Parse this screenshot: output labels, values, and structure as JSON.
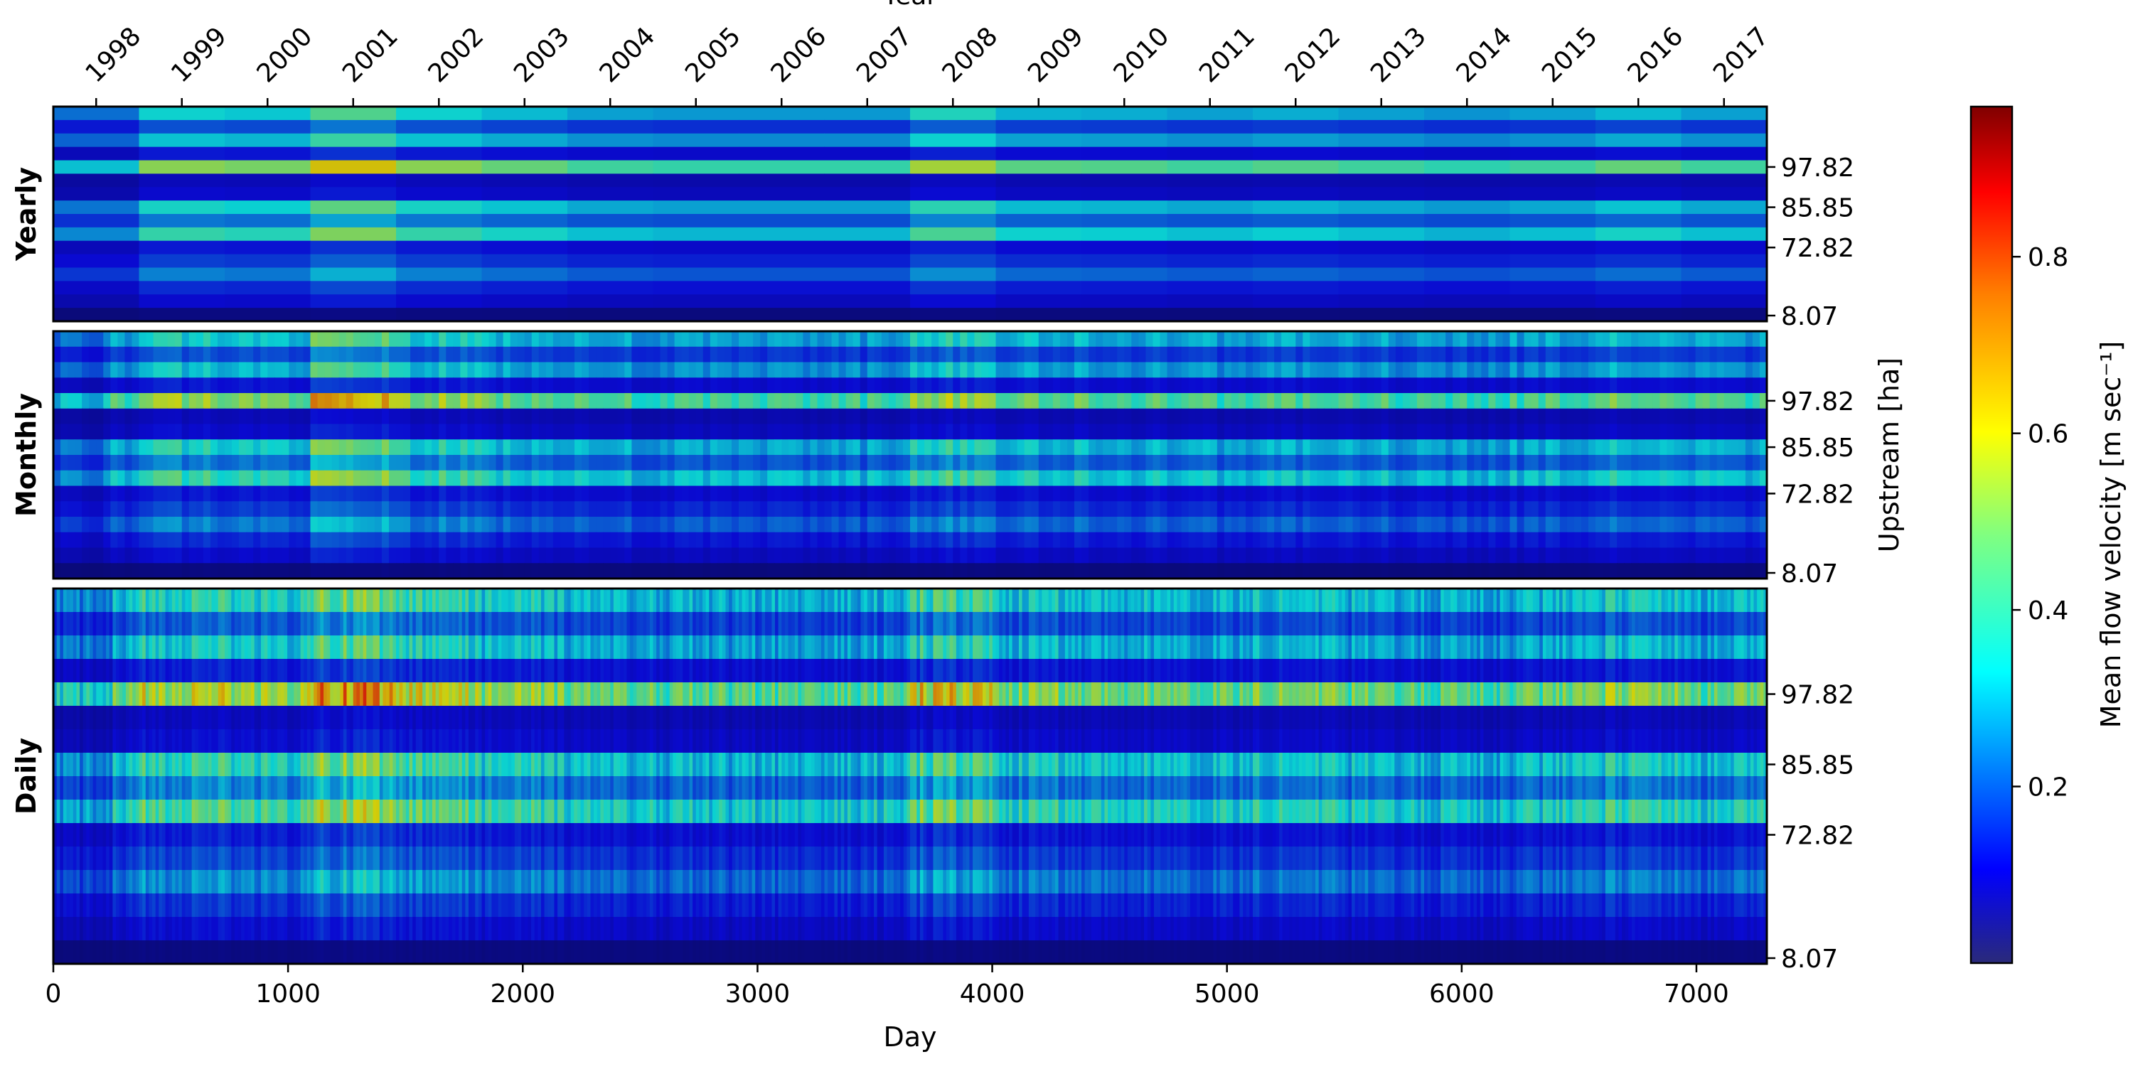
{
  "chart_data": {
    "type": "heatmap",
    "title": "",
    "x_top_label": "Year",
    "xlabel": "Day",
    "ylabel": "Upstream [ha]",
    "x_ticks": [
      0,
      1000,
      2000,
      3000,
      4000,
      5000,
      6000,
      7000
    ],
    "xlim": [
      0,
      7300
    ],
    "year_ticks": [
      "1998",
      "1999",
      "2000",
      "2001",
      "2002",
      "2003",
      "2004",
      "2005",
      "2006",
      "2007",
      "2008",
      "2009",
      "2010",
      "2011",
      "2012",
      "2013",
      "2014",
      "2015",
      "2016",
      "2017"
    ],
    "y_tick_labels": [
      "97.82",
      "85.85",
      "72.82",
      "8.07"
    ],
    "panels": [
      {
        "name": "Yearly",
        "resolution": "year"
      },
      {
        "name": "Monthly",
        "resolution": "month"
      },
      {
        "name": "Daily",
        "resolution": "day"
      }
    ],
    "colorbar": {
      "label": "Mean flow velocity [m sec⁻¹]",
      "colormap": "jet",
      "range": [
        0.0,
        0.97
      ],
      "ticks": [
        "0.2",
        "0.4",
        "0.6",
        "0.8"
      ]
    },
    "upstream_rows_mean_velocity": [
      0.32,
      0.18,
      0.3,
      0.12,
      0.45,
      0.08,
      0.1,
      0.33,
      0.22,
      0.36,
      0.12,
      0.16,
      0.23,
      0.14,
      0.1,
      0.02
    ],
    "year_factors": [
      0.95,
      1.15,
      1.1,
      1.4,
      1.15,
      1.05,
      0.95,
      0.92,
      0.92,
      0.92,
      1.22,
      1.02,
      1.0,
      0.95,
      1.0,
      0.95,
      0.9,
      0.95,
      1.05,
      0.95
    ]
  }
}
